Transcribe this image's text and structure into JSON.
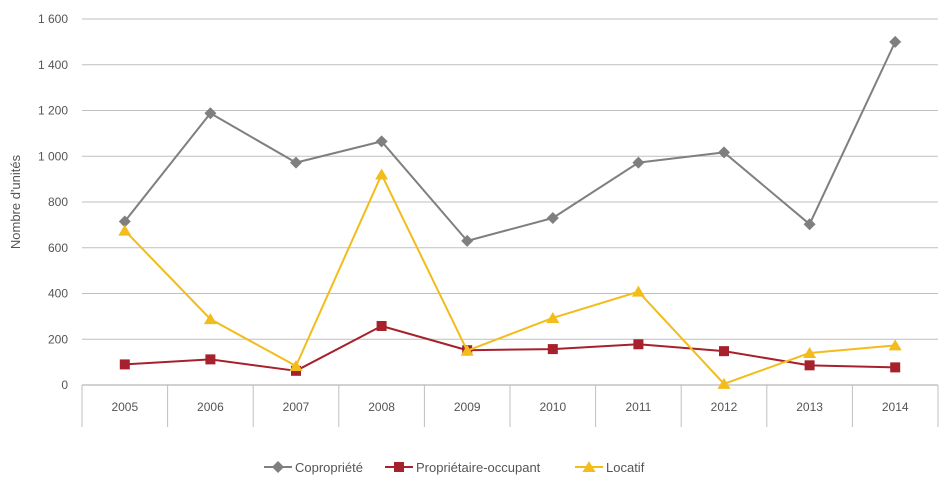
{
  "chart_data": {
    "type": "line",
    "title": "",
    "xlabel": "",
    "ylabel": "Nombre d'unités",
    "categories": [
      "2005",
      "2006",
      "2007",
      "2008",
      "2009",
      "2010",
      "2011",
      "2012",
      "2013",
      "2014"
    ],
    "ylim": [
      0,
      1600
    ],
    "yticks": [
      0,
      200,
      400,
      600,
      800,
      1000,
      1200,
      1400,
      1600
    ],
    "ytick_labels": [
      "0",
      "200",
      "400",
      "600",
      "800",
      "1 000",
      "1 200",
      "1 400",
      "1 600"
    ],
    "grid": true,
    "legend_position": "bottom",
    "series": [
      {
        "name": "Copropriété",
        "color": "#7f7f7f",
        "marker": "diamond",
        "values": [
          715,
          1188,
          972,
          1065,
          630,
          730,
          972,
          1017,
          703,
          1500
        ]
      },
      {
        "name": "Propriétaire-occupant",
        "color": "#a6212b",
        "marker": "square",
        "values": [
          90,
          112,
          62,
          258,
          152,
          157,
          178,
          148,
          86,
          77
        ]
      },
      {
        "name": "Locatif",
        "color": "#f2bc1b",
        "marker": "triangle",
        "values": [
          675,
          288,
          83,
          920,
          150,
          293,
          408,
          5,
          140,
          173
        ]
      }
    ]
  }
}
